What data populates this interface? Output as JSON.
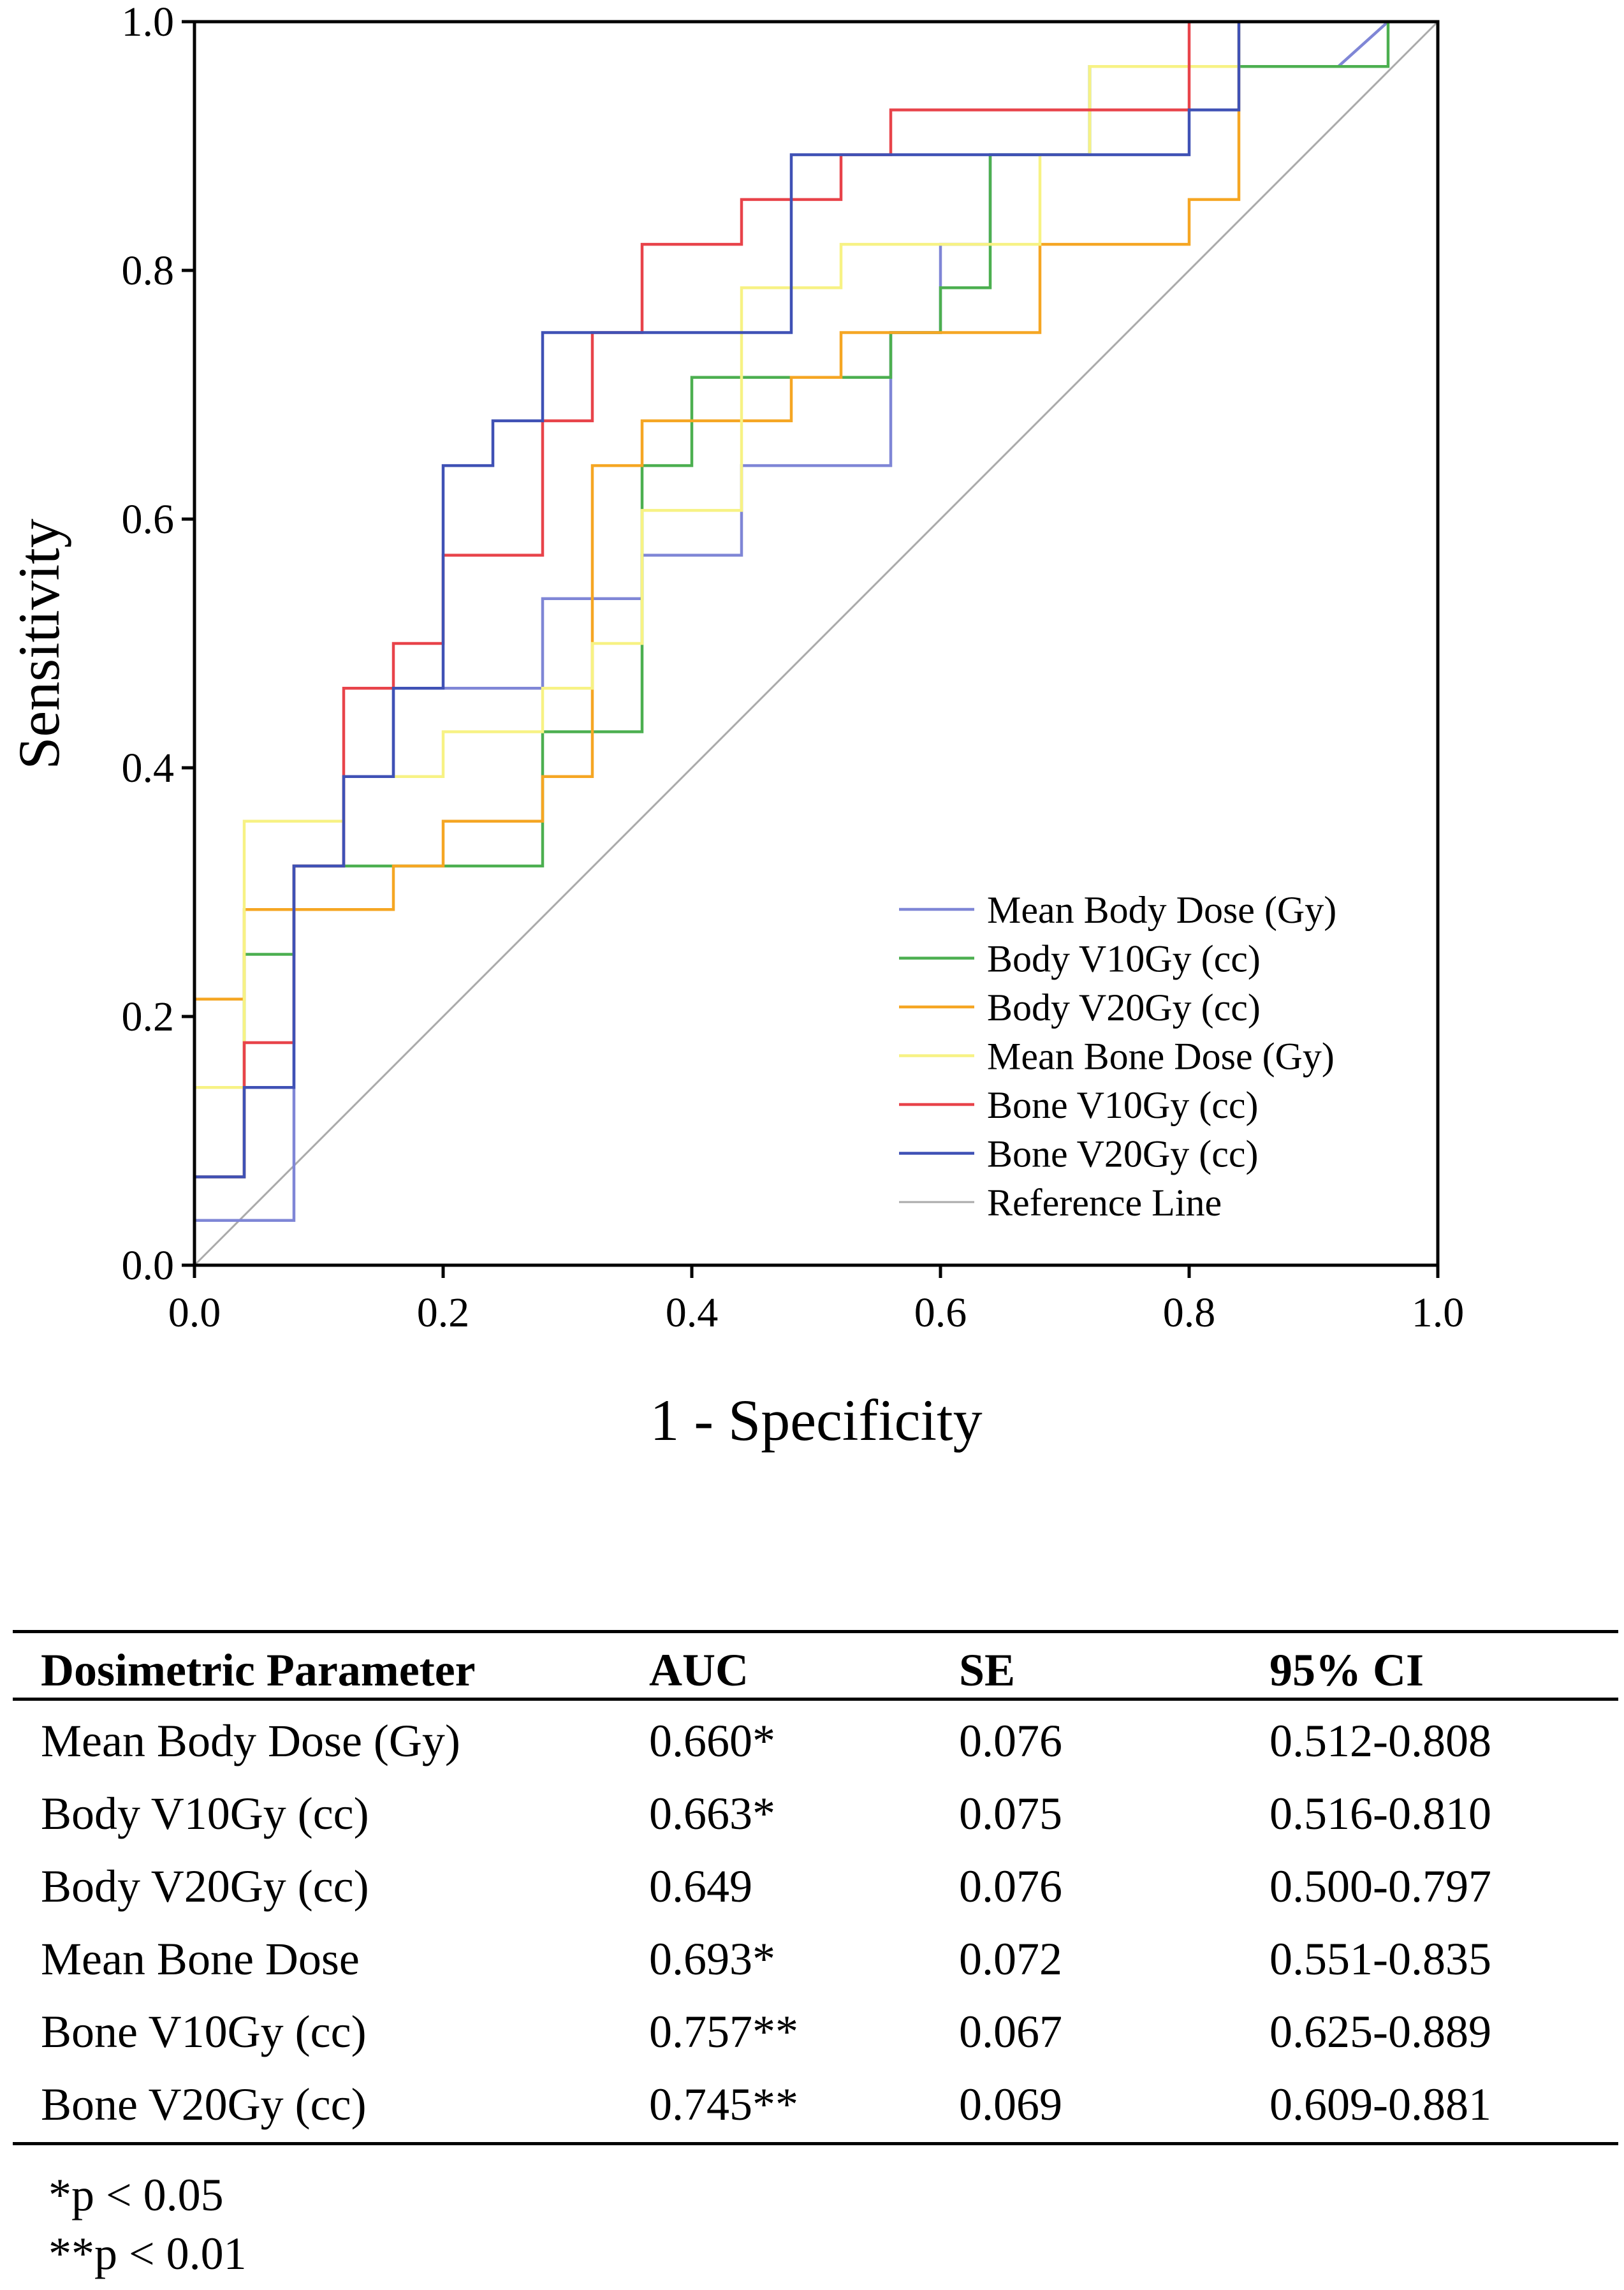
{
  "chart_data": {
    "type": "line",
    "subtype": "roc",
    "xlabel": "1 - Specificity",
    "ylabel": "Sensitivity",
    "xlim": [
      0,
      1
    ],
    "ylim": [
      0,
      1
    ],
    "xticks": [
      "0.0",
      "0.2",
      "0.4",
      "0.6",
      "0.8",
      "1.0"
    ],
    "yticks": [
      "0.0",
      "0.2",
      "0.4",
      "0.6",
      "0.8",
      "1.0"
    ],
    "legend_position": "lower-right",
    "series": [
      {
        "name": "Mean Body Dose (Gy)",
        "color": "#7f86d6",
        "points": [
          [
            0,
            0
          ],
          [
            0,
            0.036
          ],
          [
            0.08,
            0.036
          ],
          [
            0.08,
            0.321
          ],
          [
            0.12,
            0.321
          ],
          [
            0.12,
            0.393
          ],
          [
            0.16,
            0.393
          ],
          [
            0.16,
            0.464
          ],
          [
            0.28,
            0.464
          ],
          [
            0.28,
            0.536
          ],
          [
            0.36,
            0.536
          ],
          [
            0.36,
            0.571
          ],
          [
            0.44,
            0.571
          ],
          [
            0.44,
            0.643
          ],
          [
            0.56,
            0.643
          ],
          [
            0.56,
            0.75
          ],
          [
            0.6,
            0.75
          ],
          [
            0.6,
            0.821
          ],
          [
            0.64,
            0.821
          ],
          [
            0.64,
            0.893
          ],
          [
            0.72,
            0.893
          ],
          [
            0.72,
            0.964
          ],
          [
            0.92,
            0.964
          ],
          [
            0.96,
            1
          ],
          [
            1,
            1
          ]
        ]
      },
      {
        "name": "Body V10Gy (cc)",
        "color": "#4caf50",
        "points": [
          [
            0,
            0
          ],
          [
            0,
            0.071
          ],
          [
            0.04,
            0.071
          ],
          [
            0.04,
            0.25
          ],
          [
            0.08,
            0.25
          ],
          [
            0.08,
            0.321
          ],
          [
            0.28,
            0.321
          ],
          [
            0.28,
            0.429
          ],
          [
            0.36,
            0.429
          ],
          [
            0.36,
            0.643
          ],
          [
            0.4,
            0.643
          ],
          [
            0.4,
            0.714
          ],
          [
            0.56,
            0.714
          ],
          [
            0.56,
            0.75
          ],
          [
            0.6,
            0.75
          ],
          [
            0.6,
            0.786
          ],
          [
            0.64,
            0.786
          ],
          [
            0.64,
            0.893
          ],
          [
            0.72,
            0.893
          ],
          [
            0.72,
            0.964
          ],
          [
            0.96,
            0.964
          ],
          [
            0.96,
            1
          ],
          [
            1,
            1
          ]
        ]
      },
      {
        "name": "Body V20Gy (cc)",
        "color": "#f5a623",
        "points": [
          [
            0,
            0
          ],
          [
            0,
            0.214
          ],
          [
            0.04,
            0.214
          ],
          [
            0.04,
            0.286
          ],
          [
            0.16,
            0.286
          ],
          [
            0.16,
            0.321
          ],
          [
            0.2,
            0.321
          ],
          [
            0.2,
            0.357
          ],
          [
            0.28,
            0.357
          ],
          [
            0.28,
            0.393
          ],
          [
            0.32,
            0.393
          ],
          [
            0.32,
            0.643
          ],
          [
            0.36,
            0.643
          ],
          [
            0.36,
            0.679
          ],
          [
            0.48,
            0.679
          ],
          [
            0.48,
            0.714
          ],
          [
            0.52,
            0.714
          ],
          [
            0.52,
            0.75
          ],
          [
            0.68,
            0.75
          ],
          [
            0.68,
            0.821
          ],
          [
            0.8,
            0.821
          ],
          [
            0.8,
            0.857
          ],
          [
            0.84,
            0.857
          ],
          [
            0.84,
            1
          ],
          [
            1,
            1
          ]
        ]
      },
      {
        "name": "Mean Bone Dose (Gy)",
        "color": "#f7f284",
        "points": [
          [
            0,
            0
          ],
          [
            0,
            0.143
          ],
          [
            0.04,
            0.143
          ],
          [
            0.04,
            0.357
          ],
          [
            0.12,
            0.357
          ],
          [
            0.12,
            0.393
          ],
          [
            0.2,
            0.393
          ],
          [
            0.2,
            0.429
          ],
          [
            0.28,
            0.429
          ],
          [
            0.28,
            0.464
          ],
          [
            0.32,
            0.464
          ],
          [
            0.32,
            0.5
          ],
          [
            0.36,
            0.5
          ],
          [
            0.36,
            0.607
          ],
          [
            0.44,
            0.607
          ],
          [
            0.44,
            0.786
          ],
          [
            0.52,
            0.786
          ],
          [
            0.52,
            0.821
          ],
          [
            0.68,
            0.821
          ],
          [
            0.68,
            0.893
          ],
          [
            0.72,
            0.893
          ],
          [
            0.72,
            0.964
          ],
          [
            0.84,
            0.964
          ],
          [
            0.84,
            1
          ],
          [
            1,
            1
          ]
        ]
      },
      {
        "name": "Bone V10Gy (cc)",
        "color": "#e8434a",
        "points": [
          [
            0,
            0
          ],
          [
            0,
            0.071
          ],
          [
            0.04,
            0.071
          ],
          [
            0.04,
            0.179
          ],
          [
            0.08,
            0.179
          ],
          [
            0.08,
            0.321
          ],
          [
            0.12,
            0.321
          ],
          [
            0.12,
            0.464
          ],
          [
            0.16,
            0.464
          ],
          [
            0.16,
            0.5
          ],
          [
            0.2,
            0.5
          ],
          [
            0.2,
            0.571
          ],
          [
            0.28,
            0.571
          ],
          [
            0.28,
            0.679
          ],
          [
            0.32,
            0.679
          ],
          [
            0.32,
            0.75
          ],
          [
            0.36,
            0.75
          ],
          [
            0.36,
            0.821
          ],
          [
            0.44,
            0.821
          ],
          [
            0.44,
            0.857
          ],
          [
            0.52,
            0.857
          ],
          [
            0.52,
            0.893
          ],
          [
            0.56,
            0.893
          ],
          [
            0.56,
            0.929
          ],
          [
            0.8,
            0.929
          ],
          [
            0.8,
            1
          ],
          [
            1,
            1
          ]
        ]
      },
      {
        "name": "Bone V20Gy (cc)",
        "color": "#3f51b5",
        "points": [
          [
            0,
            0
          ],
          [
            0,
            0.071
          ],
          [
            0.04,
            0.071
          ],
          [
            0.04,
            0.143
          ],
          [
            0.08,
            0.143
          ],
          [
            0.08,
            0.321
          ],
          [
            0.12,
            0.321
          ],
          [
            0.12,
            0.393
          ],
          [
            0.16,
            0.393
          ],
          [
            0.16,
            0.464
          ],
          [
            0.2,
            0.464
          ],
          [
            0.2,
            0.643
          ],
          [
            0.24,
            0.643
          ],
          [
            0.24,
            0.679
          ],
          [
            0.28,
            0.679
          ],
          [
            0.28,
            0.75
          ],
          [
            0.48,
            0.75
          ],
          [
            0.48,
            0.893
          ],
          [
            0.8,
            0.893
          ],
          [
            0.8,
            0.929
          ],
          [
            0.84,
            0.929
          ],
          [
            0.84,
            1
          ],
          [
            1,
            1
          ]
        ]
      },
      {
        "name": "Reference Line",
        "color": "#aaaaaa",
        "points": [
          [
            0,
            0
          ],
          [
            1,
            1
          ]
        ]
      }
    ]
  },
  "table": {
    "headers": [
      "Dosimetric Parameter",
      "AUC",
      "SE",
      "95% CI"
    ],
    "rows": [
      [
        "Mean Body Dose (Gy)",
        "0.660*",
        "0.076",
        "0.512-0.808"
      ],
      [
        "Body V10Gy (cc)",
        "0.663*",
        "0.075",
        "0.516-0.810"
      ],
      [
        "Body V20Gy (cc)",
        "0.649",
        "0.076",
        "0.500-0.797"
      ],
      [
        "Mean Bone Dose",
        "0.693*",
        "0.072",
        "0.551-0.835"
      ],
      [
        "Bone V10Gy (cc)",
        "0.757**",
        "0.067",
        "0.625-0.889"
      ],
      [
        "Bone V20Gy (cc)",
        "0.745**",
        "0.069",
        "0.609-0.881"
      ]
    ]
  },
  "footnotes": [
    "*p < 0.05",
    "**p < 0.01"
  ]
}
